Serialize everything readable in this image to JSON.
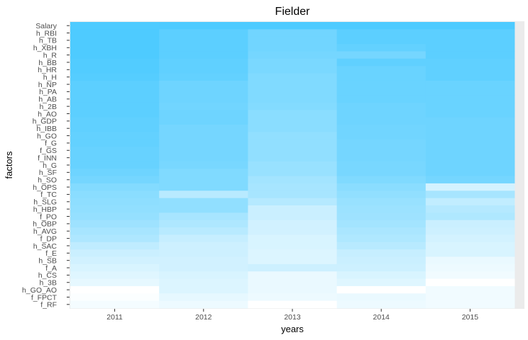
{
  "chart_data": {
    "type": "heatmap",
    "title": "Fielder",
    "xlabel": "years",
    "ylabel": "factors",
    "x": [
      "2011",
      "2012",
      "2013",
      "2014",
      "2015"
    ],
    "y": [
      "Salary",
      "h_RBI",
      "h_TB",
      "h_XBH",
      "h_R",
      "h_BB",
      "h_HR",
      "h_H",
      "h_NP",
      "h_PA",
      "h_AB",
      "h_2B",
      "h_AO",
      "h_GDP",
      "h_IBB",
      "h_GO",
      "f_G",
      "f_GS",
      "f_INN",
      "h_G",
      "h_SF",
      "h_SO",
      "h_OPS",
      "f_TC",
      "h_SLG",
      "h_HBP",
      "f_PO",
      "h_OBP",
      "h_AVG",
      "f_DP",
      "h_SAC",
      "f_E",
      "h_SB",
      "f_A",
      "h_CS",
      "h_3B",
      "h_GO_AO",
      "f_FPCT",
      "f_RF"
    ],
    "values": [
      [
        1.0,
        1.0,
        1.0,
        1.0,
        1.0
      ],
      [
        1.0,
        0.92,
        0.8,
        0.92,
        0.92
      ],
      [
        1.0,
        0.92,
        0.8,
        0.92,
        0.92
      ],
      [
        1.0,
        0.92,
        0.8,
        0.88,
        0.92
      ],
      [
        1.0,
        0.92,
        0.78,
        0.78,
        0.92
      ],
      [
        0.98,
        0.9,
        0.75,
        0.9,
        0.9
      ],
      [
        0.98,
        0.9,
        0.75,
        0.85,
        0.9
      ],
      [
        0.96,
        0.88,
        0.72,
        0.85,
        0.9
      ],
      [
        0.92,
        0.82,
        0.72,
        0.85,
        0.85
      ],
      [
        0.92,
        0.82,
        0.72,
        0.85,
        0.85
      ],
      [
        0.92,
        0.82,
        0.72,
        0.85,
        0.85
      ],
      [
        0.92,
        0.8,
        0.7,
        0.82,
        0.85
      ],
      [
        0.92,
        0.82,
        0.66,
        0.82,
        0.85
      ],
      [
        0.9,
        0.82,
        0.66,
        0.82,
        0.82
      ],
      [
        0.9,
        0.78,
        0.66,
        0.8,
        0.82
      ],
      [
        0.88,
        0.78,
        0.62,
        0.8,
        0.82
      ],
      [
        0.88,
        0.78,
        0.62,
        0.78,
        0.82
      ],
      [
        0.86,
        0.78,
        0.62,
        0.78,
        0.82
      ],
      [
        0.86,
        0.78,
        0.62,
        0.78,
        0.82
      ],
      [
        0.86,
        0.76,
        0.58,
        0.76,
        0.82
      ],
      [
        0.82,
        0.72,
        0.58,
        0.76,
        0.82
      ],
      [
        0.78,
        0.72,
        0.52,
        0.72,
        0.78
      ],
      [
        0.7,
        0.72,
        0.5,
        0.66,
        0.25
      ],
      [
        0.66,
        0.4,
        0.5,
        0.62,
        0.5
      ],
      [
        0.64,
        0.62,
        0.42,
        0.58,
        0.35
      ],
      [
        0.62,
        0.62,
        0.3,
        0.56,
        0.42
      ],
      [
        0.6,
        0.5,
        0.3,
        0.55,
        0.45
      ],
      [
        0.55,
        0.46,
        0.26,
        0.52,
        0.3
      ],
      [
        0.5,
        0.4,
        0.26,
        0.48,
        0.28
      ],
      [
        0.46,
        0.32,
        0.22,
        0.45,
        0.25
      ],
      [
        0.36,
        0.28,
        0.22,
        0.4,
        0.22
      ],
      [
        0.3,
        0.28,
        0.2,
        0.32,
        0.22
      ],
      [
        0.26,
        0.26,
        0.2,
        0.3,
        0.12
      ],
      [
        0.22,
        0.26,
        0.28,
        0.28,
        0.1
      ],
      [
        0.18,
        0.22,
        0.12,
        0.22,
        0.08
      ],
      [
        0.14,
        0.2,
        0.12,
        0.18,
        0.0
      ],
      [
        0.0,
        0.2,
        0.12,
        0.0,
        0.08
      ],
      [
        0.02,
        0.14,
        0.1,
        0.12,
        0.08
      ],
      [
        0.06,
        0.1,
        0.0,
        0.1,
        0.08
      ]
    ],
    "low_color": "#ffffff",
    "high_color": "#4ecbff",
    "panel_background": "#ebebeb",
    "grid": false,
    "legend": "none"
  }
}
